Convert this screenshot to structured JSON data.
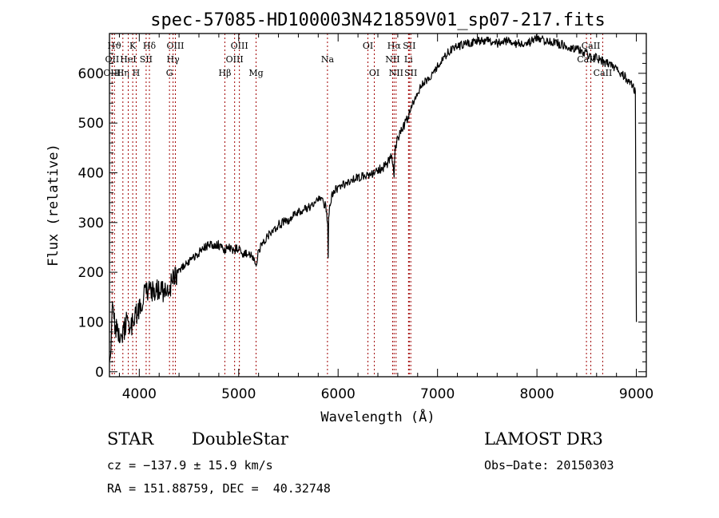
{
  "chart_data": {
    "type": "line",
    "title": "spec-57085-HD100003N421859V01_sp07-217.fits",
    "xlabel": "Wavelength (Å)",
    "ylabel": "Flux (relative)",
    "xlim": [
      3700,
      9100
    ],
    "ylim": [
      -10,
      680
    ],
    "xticks": [
      4000,
      5000,
      6000,
      7000,
      8000,
      9000
    ],
    "yticks": [
      0,
      100,
      200,
      300,
      400,
      500,
      600
    ],
    "series": [
      {
        "name": "flux",
        "x": [
          3700,
          3730,
          3760,
          3790,
          3830,
          3870,
          3920,
          3960,
          4000,
          4050,
          4100,
          4150,
          4200,
          4250,
          4300,
          4350,
          4400,
          4450,
          4500,
          4600,
          4700,
          4800,
          4860,
          4900,
          4950,
          5000,
          5050,
          5100,
          5150,
          5175,
          5200,
          5250,
          5300,
          5400,
          5500,
          5600,
          5700,
          5800,
          5850,
          5880,
          5895,
          5900,
          5905,
          5920,
          5950,
          6000,
          6100,
          6200,
          6300,
          6400,
          6450,
          6500,
          6540,
          6563,
          6575,
          6600,
          6650,
          6700,
          6750,
          6800,
          6850,
          6900,
          6950,
          7000,
          7050,
          7100,
          7150,
          7200,
          7300,
          7400,
          7500,
          7600,
          7700,
          7800,
          7900,
          8000,
          8100,
          8200,
          8300,
          8400,
          8500,
          8600,
          8700,
          8800,
          8850,
          8900,
          8950,
          8990,
          9000
        ],
        "y": [
          10,
          120,
          90,
          80,
          70,
          100,
          90,
          110,
          130,
          155,
          170,
          160,
          165,
          160,
          165,
          190,
          200,
          215,
          220,
          240,
          255,
          255,
          245,
          250,
          245,
          250,
          235,
          240,
          225,
          210,
          245,
          260,
          275,
          295,
          305,
          320,
          330,
          345,
          340,
          330,
          300,
          235,
          310,
          340,
          360,
          370,
          380,
          390,
          395,
          405,
          410,
          420,
          440,
          390,
          450,
          470,
          490,
          510,
          540,
          560,
          580,
          590,
          600,
          615,
          630,
          640,
          650,
          655,
          660,
          665,
          665,
          660,
          665,
          660,
          660,
          670,
          665,
          660,
          655,
          650,
          640,
          630,
          620,
          610,
          600,
          590,
          580,
          560,
          100
        ]
      }
    ],
    "spectral_lines": [
      {
        "label": "Hϑ",
        "x": 3750,
        "row": 1
      },
      {
        "label": "OII",
        "x": 3727,
        "row": 2
      },
      {
        "label": "OIII",
        "x": 3727,
        "row": 3
      },
      {
        "label": "Hη",
        "x": 3835,
        "row": 3
      },
      {
        "label": "K",
        "x": 3934,
        "row": 1
      },
      {
        "label": "HeI",
        "x": 3889,
        "row": 2
      },
      {
        "label": "SII",
        "x": 4069,
        "row": 2
      },
      {
        "label": "H",
        "x": 3969,
        "row": 3
      },
      {
        "label": "Hδ",
        "x": 4102,
        "row": 1
      },
      {
        "label": "OIII",
        "x": 4363,
        "row": 1
      },
      {
        "label": "Hγ",
        "x": 4340,
        "row": 2
      },
      {
        "label": "G",
        "x": 4304,
        "row": 3
      },
      {
        "label": "Hβ",
        "x": 4861,
        "row": 3
      },
      {
        "label": "OIII",
        "x": 5007,
        "row": 1
      },
      {
        "label": "OIII",
        "x": 4959,
        "row": 2
      },
      {
        "label": "Mg",
        "x": 5175,
        "row": 3
      },
      {
        "label": "Na",
        "x": 5893,
        "row": 2
      },
      {
        "label": "OI",
        "x": 6300,
        "row": 1
      },
      {
        "label": "OI",
        "x": 6364,
        "row": 3
      },
      {
        "label": "Hα",
        "x": 6563,
        "row": 1
      },
      {
        "label": "SII",
        "x": 6716,
        "row": 1
      },
      {
        "label": "NII",
        "x": 6548,
        "row": 2
      },
      {
        "label": "Li",
        "x": 6708,
        "row": 2
      },
      {
        "label": "NII",
        "x": 6583,
        "row": 3
      },
      {
        "label": "SII",
        "x": 6731,
        "row": 3
      },
      {
        "label": "CaII",
        "x": 8542,
        "row": 1
      },
      {
        "label": "CaII",
        "x": 8498,
        "row": 2
      },
      {
        "label": "CaII",
        "x": 8662,
        "row": 3
      }
    ]
  },
  "info": {
    "object_class": "STAR",
    "subclass": "DoubleStar",
    "survey": "LAMOST DR3",
    "cz": "cz = −137.9 ± 15.9 km/s",
    "obs_date": "Obs−Date: 20150303",
    "coords": "RA = 151.88759, DEC =  40.32748"
  },
  "colors": {
    "spectrum": "#000000",
    "line_markers": "#a00000",
    "axes": "#000000"
  }
}
